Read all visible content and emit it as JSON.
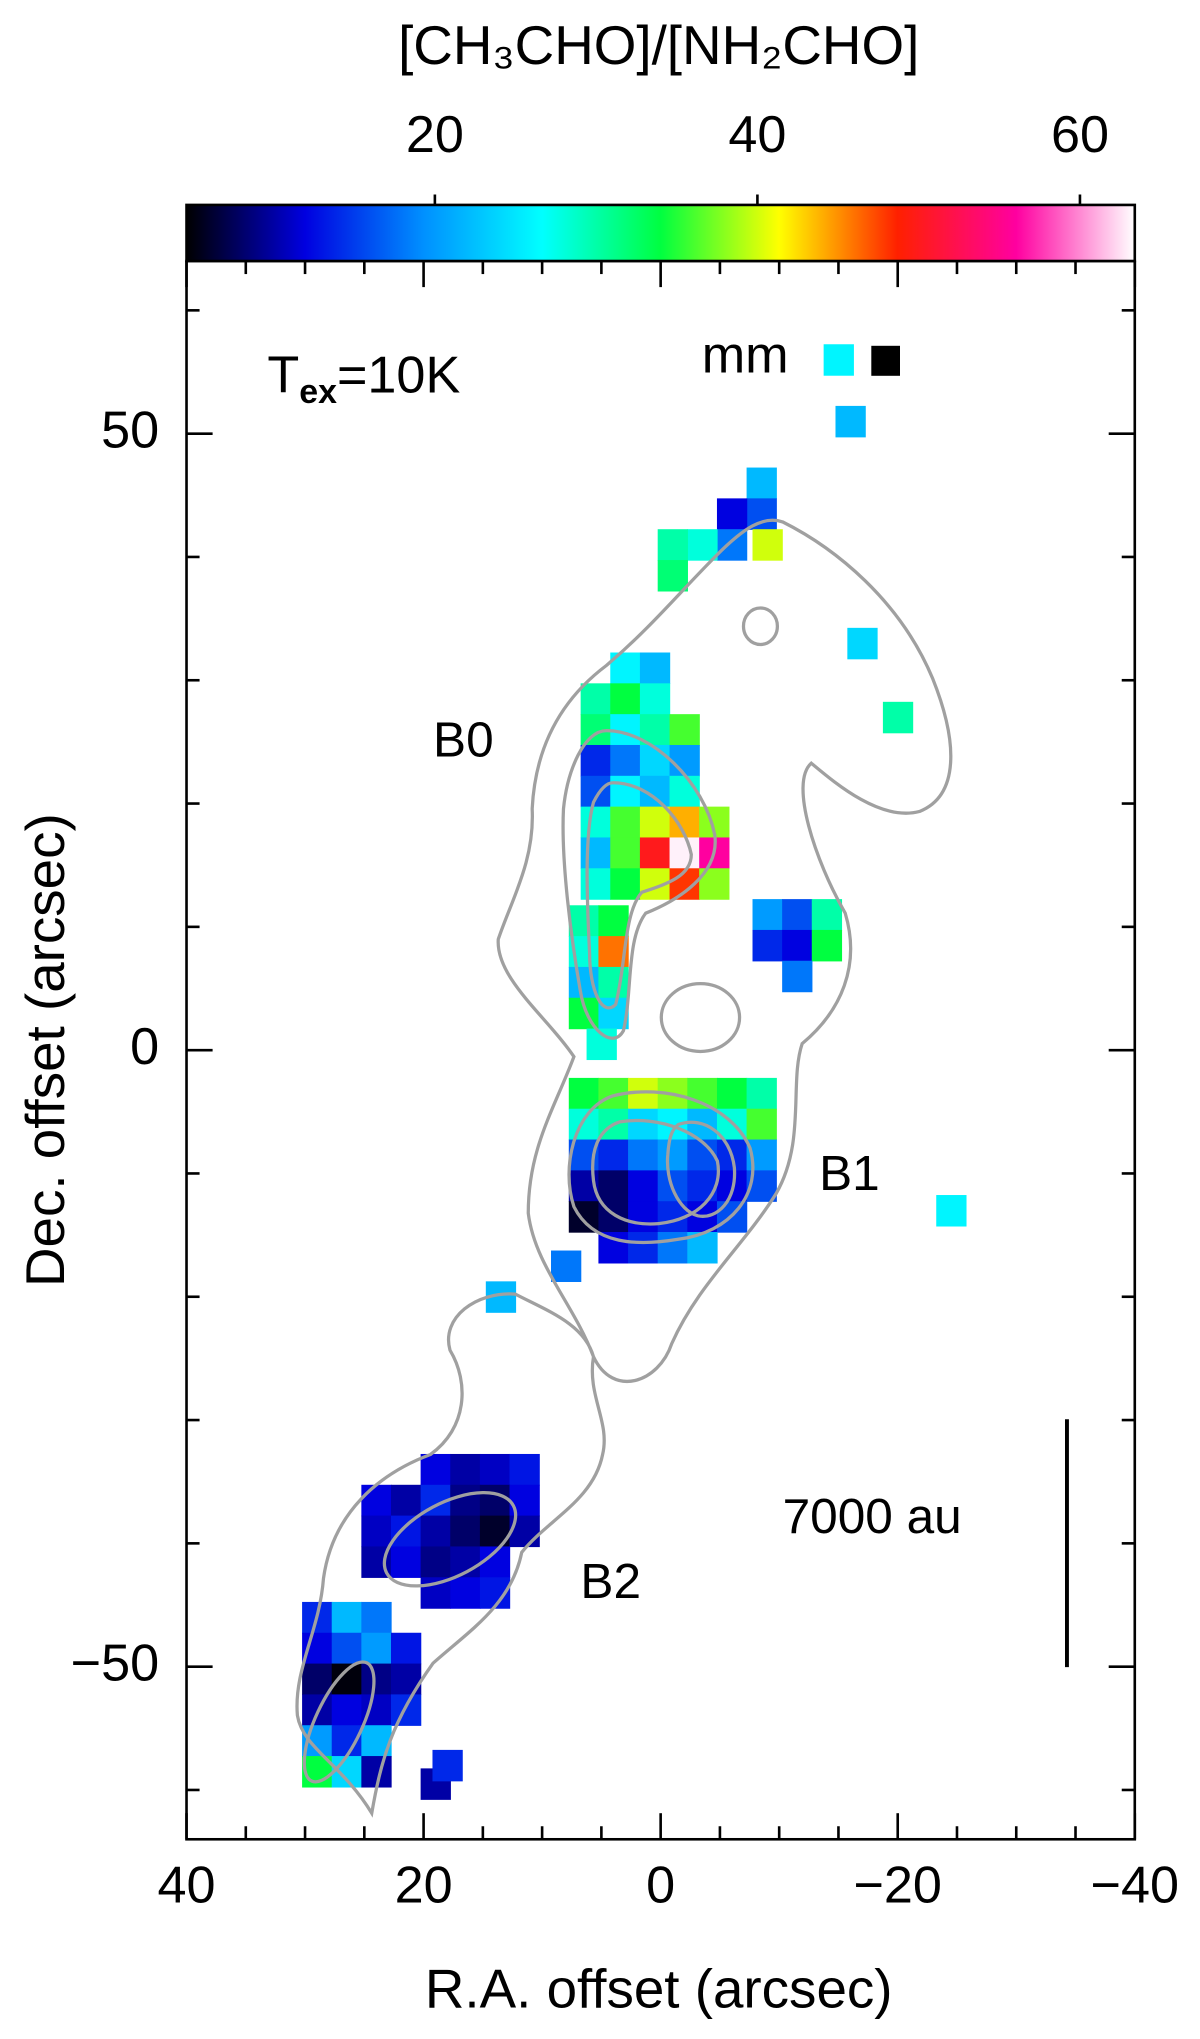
{
  "chart_data": {
    "type": "map",
    "title": "[CH₃CHO]/[NH₂CHO]",
    "x_label": "R.A. offset (arcsec)",
    "y_label": "Dec. offset (arcsec)",
    "xlim": [
      40,
      -40
    ],
    "ylim": [
      -64,
      64
    ],
    "xticks": [
      40,
      20,
      0,
      {
        "value": -20,
        "label": "−20"
      },
      {
        "value": -40,
        "label": "−40"
      }
    ],
    "xminorticks": [
      35,
      30,
      25,
      15,
      10,
      5,
      -5,
      -10,
      -15,
      -25,
      -30,
      -35
    ],
    "yticks": [
      50,
      0,
      {
        "value": -50,
        "label": "−50"
      }
    ],
    "yminorticks": [
      60,
      40,
      30,
      20,
      10,
      -10,
      -20,
      -30,
      -40,
      -60
    ],
    "clim": [
      4.6,
      63.4
    ],
    "cticks": [
      20,
      40,
      60
    ],
    "colormap": [
      "#000000",
      "#0000e0",
      "#0090ff",
      "#00ffff",
      "#00ff40",
      "#ffff00",
      "#ff2000",
      "#ff00a0",
      "#ffffff"
    ],
    "annotations": {
      "tex": {
        "symbol": "T",
        "subscript": "ex",
        "text": "=10K"
      },
      "beam": "mm",
      "b0": "B0",
      "b1": "B1",
      "b2": "B2",
      "scale": "7000 au"
    },
    "x": [
      -8.5,
      -8.5,
      -6,
      -6,
      -3.5,
      -1,
      -1,
      -9,
      -15,
      -16,
      -17,
      -20,
      -24.5,
      13.5,
      19,
      18,
      3,
      0.5,
      5.5,
      3,
      0.5,
      5.5,
      3,
      0.5,
      -2,
      5.5,
      3,
      0.5,
      -2,
      5.5,
      3,
      0.5,
      -2,
      5.5,
      3,
      0.5,
      -2,
      -4.5,
      5.5,
      3,
      0.5,
      -2,
      -4.5,
      5.5,
      3,
      0.5,
      -2,
      -4.5,
      6.5,
      4,
      6.5,
      4,
      6.5,
      4,
      6.5,
      4,
      5,
      -9,
      -11.5,
      -14,
      -9,
      -11.5,
      -14,
      -11.5,
      6.5,
      4,
      1.5,
      -1,
      -3.5,
      -6,
      -8.5,
      6.5,
      4,
      1.5,
      -1,
      -3.5,
      -6,
      -8.5,
      6.5,
      4,
      1.5,
      -1,
      -3.5,
      -6,
      -8.5,
      6.5,
      4,
      1.5,
      -1,
      -3.5,
      -6,
      -8.5,
      6.5,
      4,
      1.5,
      -1,
      -3.5,
      -6,
      4,
      1.5,
      -1,
      -3.5,
      8,
      19,
      16.5,
      14,
      11.5,
      24,
      21.5,
      19,
      16.5,
      14,
      11.5,
      24,
      21.5,
      19,
      16.5,
      14,
      11.5,
      24,
      21.5,
      19,
      16.5,
      14,
      19,
      16.5,
      14,
      29,
      26.5,
      24,
      29,
      26.5,
      24,
      21.5,
      29,
      26.5,
      24,
      21.5,
      29,
      26.5,
      24,
      21.5,
      29,
      26.5,
      24,
      29,
      26.5,
      24
    ],
    "y": [
      46,
      43.5,
      43.5,
      41,
      41,
      41,
      38.5,
      41,
      56,
      51,
      33,
      27,
      -13,
      -20,
      -59.5,
      -58,
      31,
      31,
      28.5,
      28.5,
      28.5,
      26,
      26,
      26,
      26,
      23.5,
      23.5,
      23.5,
      23.5,
      21,
      21,
      21,
      21,
      18.5,
      18.5,
      18.5,
      18.5,
      18.5,
      16,
      16,
      16,
      16,
      16,
      13.5,
      13.5,
      13.5,
      13.5,
      13.5,
      10.5,
      10.5,
      8,
      8,
      5.5,
      5.5,
      3,
      3,
      0.5,
      11,
      11,
      11,
      8.5,
      8.5,
      8.5,
      6,
      -3.5,
      -3.5,
      -3.5,
      -3.5,
      -3.5,
      -3.5,
      -3.5,
      -6,
      -6,
      -6,
      -6,
      -6,
      -6,
      -6,
      -8.5,
      -8.5,
      -8.5,
      -8.5,
      -8.5,
      -8.5,
      -8.5,
      -11,
      -11,
      -11,
      -11,
      -11,
      -11,
      -11,
      -13.5,
      -13.5,
      -13.5,
      -13.5,
      -13.5,
      -13.5,
      -16,
      -16,
      -16,
      -16,
      -17.5,
      -34,
      -34,
      -34,
      -34,
      -36.5,
      -36.5,
      -36.5,
      -36.5,
      -36.5,
      -36.5,
      -39,
      -39,
      -39,
      -39,
      -39,
      -39,
      -41.5,
      -41.5,
      -41.5,
      -41.5,
      -41.5,
      -44,
      -44,
      -44,
      -46,
      -46,
      -46,
      -48.5,
      -48.5,
      -48.5,
      -48.5,
      -51,
      -51,
      -51,
      -51,
      -53.5,
      -53.5,
      -53.5,
      -53.5,
      -56,
      -56,
      -56,
      -58.5,
      -58.5,
      -58.5
    ],
    "values": [
      22,
      16,
      12,
      18,
      28,
      30,
      32,
      40,
      26,
      22,
      24,
      30,
      26,
      22,
      10,
      14,
      26,
      22,
      30,
      34,
      28,
      32,
      26,
      30,
      36,
      14,
      18,
      24,
      20,
      16,
      26,
      22,
      28,
      28,
      36,
      40,
      44,
      38,
      22,
      36,
      50,
      63,
      56,
      28,
      34,
      40,
      48,
      38,
      30,
      34,
      28,
      46,
      22,
      30,
      34,
      24,
      28,
      20,
      16,
      30,
      14,
      12,
      34,
      18,
      34,
      36,
      40,
      38,
      36,
      34,
      30,
      28,
      30,
      24,
      26,
      22,
      28,
      36,
      16,
      14,
      18,
      20,
      16,
      14,
      20,
      10,
      8,
      12,
      16,
      14,
      12,
      16,
      6,
      8,
      12,
      14,
      12,
      16,
      12,
      14,
      18,
      22,
      18,
      12,
      10,
      11,
      13,
      12,
      10,
      14,
      9,
      8,
      12,
      11,
      13,
      10,
      8,
      6,
      10,
      10,
      12,
      9,
      10,
      12,
      11,
      12,
      13,
      14,
      22,
      18,
      12,
      16,
      20,
      13,
      8,
      5,
      9,
      10,
      10,
      12,
      11,
      14,
      20,
      14,
      22,
      34,
      24,
      10
    ]
  }
}
